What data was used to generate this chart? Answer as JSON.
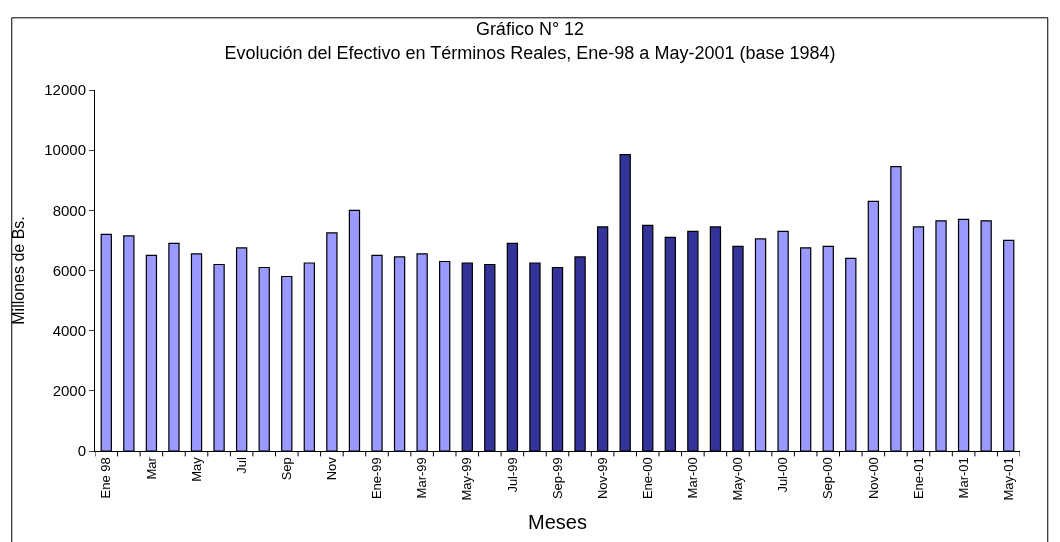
{
  "chart_data": {
    "type": "bar",
    "title": "Gráfico N° 12",
    "subtitle": "Evolución del Efectivo en Términos Reales, Ene-98 a May-2001 (base 1984)",
    "xlabel": "Meses",
    "ylabel": "Millones de Bs.",
    "categories": [
      "Ene 98",
      null,
      "Mar",
      null,
      "May",
      null,
      "Jul",
      null,
      "Sep",
      null,
      "Nov",
      null,
      "Ene-99",
      null,
      "Mar-99",
      null,
      "May-99",
      null,
      "Jul-99",
      null,
      "Sep-99",
      null,
      "Nov-99",
      null,
      "Ene-00",
      null,
      "Mar-00",
      null,
      "May-00",
      null,
      "Jul-00",
      null,
      "Sep-00",
      null,
      "Nov-00",
      null,
      "Ene-01",
      null,
      "Mar-01",
      null,
      "May-01"
    ],
    "values": [
      7200,
      7150,
      6500,
      6900,
      6550,
      6200,
      6750,
      6100,
      5800,
      6250,
      7250,
      8000,
      6500,
      6450,
      6550,
      6300,
      6250,
      6200,
      6900,
      6250,
      6100,
      6450,
      7450,
      9850,
      7500,
      7100,
      7300,
      7450,
      6800,
      7050,
      7300,
      6750,
      6800,
      6400,
      8300,
      9450,
      7450,
      7650,
      7700,
      7650,
      7000
    ],
    "colors": [
      "#9999ff",
      "#9999ff",
      "#9999ff",
      "#9999ff",
      "#9999ff",
      "#9999ff",
      "#9999ff",
      "#9999ff",
      "#9999ff",
      "#9999ff",
      "#9999ff",
      "#9999ff",
      "#9999ff",
      "#9999ff",
      "#9999ff",
      "#9999ff",
      "#333399",
      "#333399",
      "#333399",
      "#333399",
      "#333399",
      "#333399",
      "#333399",
      "#333399",
      "#333399",
      "#333399",
      "#333399",
      "#333399",
      "#333399",
      "#9999ff",
      "#9999ff",
      "#9999ff",
      "#9999ff",
      "#9999ff",
      "#9999ff",
      "#9999ff",
      "#9999ff",
      "#9999ff",
      "#9999ff",
      "#9999ff",
      "#9999ff"
    ],
    "ylim": [
      0,
      12000
    ],
    "yticks": [
      0,
      2000,
      4000,
      6000,
      8000,
      10000,
      12000
    ]
  }
}
